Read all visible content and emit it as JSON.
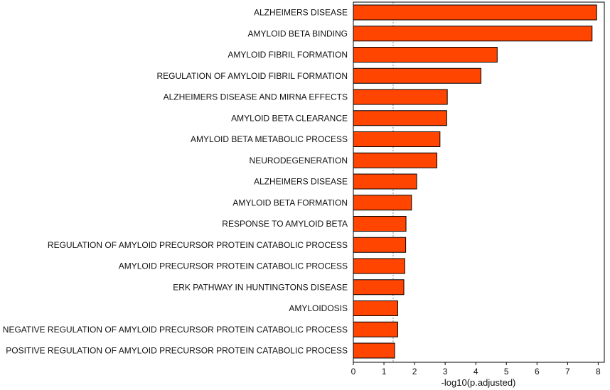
{
  "chart_data": {
    "type": "bar",
    "orientation": "horizontal",
    "title": "",
    "xlabel": "-log10(p.adjusted)",
    "ylabel": "",
    "xlim": [
      0,
      8.2
    ],
    "xticks": [
      0,
      1,
      2,
      3,
      4,
      5,
      6,
      7,
      8
    ],
    "reference_line": 1.3,
    "grid": false,
    "legend": "none",
    "bar_color": "#FF4500",
    "bar_edge_color": "#000000",
    "categories": [
      "ALZHEIMERS DISEASE",
      "AMYLOID BETA BINDING",
      "AMYLOID FIBRIL FORMATION",
      "REGULATION OF AMYLOID FIBRIL FORMATION",
      "ALZHEIMERS DISEASE AND MIRNA EFFECTS",
      "AMYLOID BETA CLEARANCE",
      "AMYLOID BETA METABOLIC PROCESS",
      "NEURODEGENERATION",
      "ALZHEIMERS DISEASE",
      "AMYLOID BETA FORMATION",
      "RESPONSE TO AMYLOID BETA",
      "REGULATION OF AMYLOID PRECURSOR PROTEIN CATABOLIC PROCESS",
      "AMYLOID PRECURSOR PROTEIN CATABOLIC PROCESS",
      "ERK PATHWAY IN HUNTINGTONS DISEASE",
      "AMYLOIDOSIS",
      "NEGATIVE REGULATION OF AMYLOID PRECURSOR PROTEIN CATABOLIC PROCESS",
      "POSITIVE REGULATION OF AMYLOID PRECURSOR PROTEIN CATABOLIC PROCESS"
    ],
    "values": [
      7.95,
      7.8,
      4.7,
      4.17,
      3.07,
      3.05,
      2.83,
      2.73,
      2.07,
      1.9,
      1.72,
      1.71,
      1.68,
      1.65,
      1.45,
      1.45,
      1.35
    ]
  }
}
